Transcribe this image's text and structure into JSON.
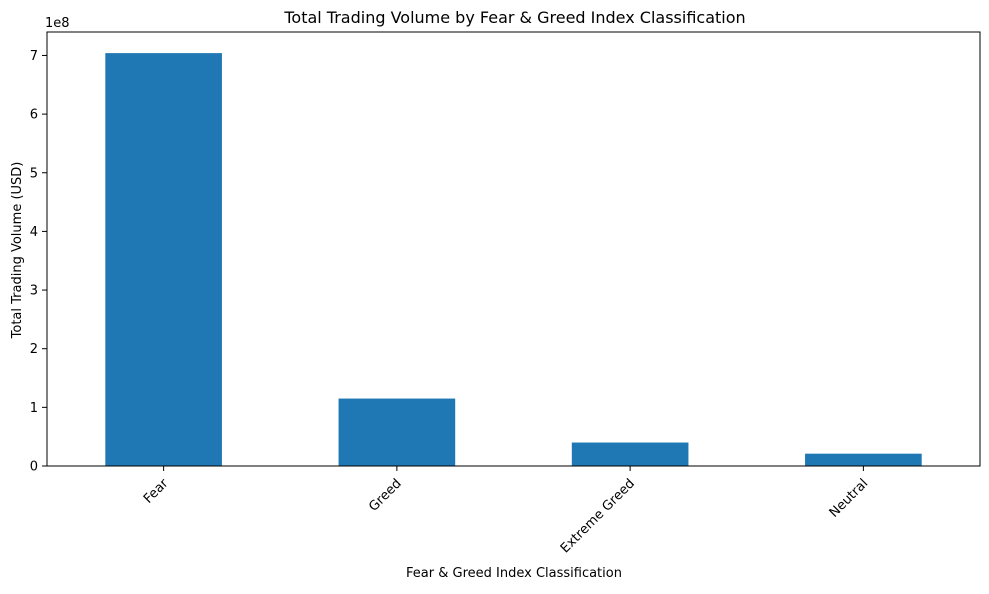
{
  "chart_data": {
    "type": "bar",
    "title": "Total Trading Volume by Fear & Greed Index Classification",
    "xlabel": "Fear & Greed Index Classification",
    "ylabel": "Total Trading Volume (USD)",
    "y_offset_label": "1e8",
    "categories": [
      "Fear",
      "Greed",
      "Extreme Greed",
      "Neutral"
    ],
    "values": [
      704000000,
      115000000,
      40000000,
      21000000
    ],
    "ylim": [
      0,
      740000000
    ],
    "y_ticks": [
      0,
      100000000,
      200000000,
      300000000,
      400000000,
      500000000,
      600000000,
      700000000
    ],
    "y_tick_labels": [
      "0",
      "1",
      "2",
      "3",
      "4",
      "5",
      "6",
      "7"
    ],
    "bar_color": "#1f77b4",
    "grid": false,
    "legend": "none"
  }
}
